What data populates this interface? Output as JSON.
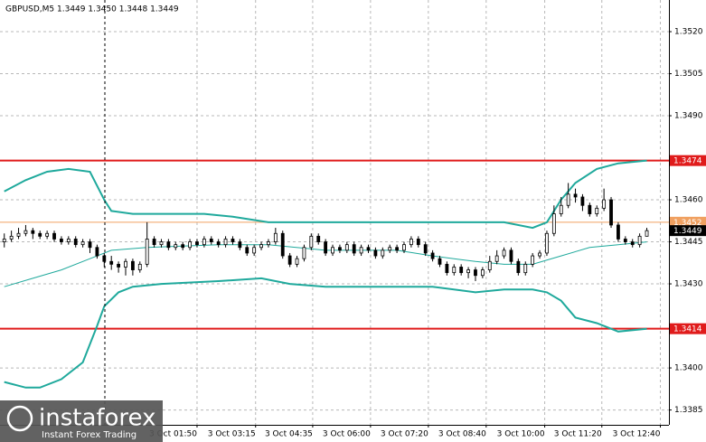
{
  "chart_data": {
    "type": "candlestick",
    "title": "GBPUSD,M5  1.3449 1.3450 1.3448 1.3449",
    "open": [
      1.3445,
      1.3446,
      1.3447,
      1.3448,
      1.3449,
      1.3448,
      1.3447,
      1.3448,
      1.3446,
      1.3445,
      1.3446,
      1.3444,
      1.3445,
      1.3443,
      1.344,
      1.3438,
      1.3437,
      1.3436,
      1.3438,
      1.3435,
      1.3437,
      1.3446,
      1.3444,
      1.3445,
      1.3443,
      1.3444,
      1.3443,
      1.3445,
      1.3444,
      1.3446,
      1.3445,
      1.3444,
      1.3446,
      1.3445,
      1.3443,
      1.3441,
      1.3443,
      1.3444,
      1.3445,
      1.3448,
      1.344,
      1.3437,
      1.3439,
      1.3443,
      1.3447,
      1.3445,
      1.3441,
      1.3443,
      1.3442,
      1.3444,
      1.3441,
      1.3443,
      1.3442,
      1.344,
      1.3442,
      1.3443,
      1.3442,
      1.3444,
      1.3446,
      1.3444,
      1.3441,
      1.3439,
      1.3437,
      1.3434,
      1.3436,
      1.3434,
      1.3435,
      1.3433,
      1.3435,
      1.3438,
      1.344,
      1.3442,
      1.3438,
      1.3434,
      1.3437,
      1.344,
      1.3441,
      1.3448,
      1.3455,
      1.3458,
      1.3462,
      1.3461,
      1.3458,
      1.3455,
      1.3457,
      1.346,
      1.3451,
      1.3446,
      1.3445,
      1.3444,
      1.3447
    ],
    "high": [
      1.3448,
      1.3449,
      1.345,
      1.3451,
      1.345,
      1.3449,
      1.3449,
      1.3449,
      1.3447,
      1.3447,
      1.3447,
      1.3446,
      1.3446,
      1.3444,
      1.3441,
      1.344,
      1.3438,
      1.3439,
      1.3439,
      1.3438,
      1.3452,
      1.3447,
      1.3446,
      1.3446,
      1.3445,
      1.3445,
      1.3446,
      1.3446,
      1.3447,
      1.3447,
      1.3446,
      1.3447,
      1.3447,
      1.3446,
      1.3444,
      1.3444,
      1.3445,
      1.3446,
      1.345,
      1.3449,
      1.3441,
      1.344,
      1.3444,
      1.3448,
      1.3448,
      1.3446,
      1.3444,
      1.3444,
      1.3445,
      1.3445,
      1.3444,
      1.3444,
      1.3443,
      1.3443,
      1.3444,
      1.3444,
      1.3445,
      1.3447,
      1.3447,
      1.3445,
      1.3442,
      1.344,
      1.3438,
      1.3437,
      1.3437,
      1.3436,
      1.3436,
      1.3436,
      1.344,
      1.3442,
      1.3443,
      1.3443,
      1.3439,
      1.3438,
      1.3441,
      1.3442,
      1.3449,
      1.3458,
      1.3461,
      1.3466,
      1.3464,
      1.3462,
      1.3459,
      1.3458,
      1.3464,
      1.3461,
      1.3452,
      1.3447,
      1.3446,
      1.3448,
      1.345
    ],
    "low": [
      1.3443,
      1.3445,
      1.3446,
      1.3447,
      1.3446,
      1.3446,
      1.3446,
      1.3445,
      1.3444,
      1.3444,
      1.3443,
      1.3443,
      1.3441,
      1.3439,
      1.3436,
      1.3435,
      1.3434,
      1.3433,
      1.3433,
      1.3434,
      1.3436,
      1.3443,
      1.3443,
      1.3442,
      1.3442,
      1.3442,
      1.3442,
      1.3443,
      1.3443,
      1.3444,
      1.3443,
      1.3443,
      1.3444,
      1.3442,
      1.344,
      1.344,
      1.3442,
      1.3443,
      1.3444,
      1.3439,
      1.3436,
      1.3436,
      1.3438,
      1.3442,
      1.3444,
      1.344,
      1.344,
      1.3441,
      1.3441,
      1.344,
      1.344,
      1.3441,
      1.3439,
      1.3439,
      1.3441,
      1.3441,
      1.3441,
      1.3443,
      1.3443,
      1.344,
      1.3438,
      1.3436,
      1.3433,
      1.3433,
      1.3433,
      1.3432,
      1.3431,
      1.3432,
      1.3434,
      1.3437,
      1.3439,
      1.3437,
      1.3433,
      1.3433,
      1.3436,
      1.3439,
      1.344,
      1.3447,
      1.3454,
      1.3457,
      1.3459,
      1.3456,
      1.3454,
      1.3454,
      1.3456,
      1.345,
      1.3445,
      1.3444,
      1.3443,
      1.3443,
      1.3447
    ],
    "close": [
      1.3446,
      1.3447,
      1.3448,
      1.3449,
      1.3448,
      1.3447,
      1.3448,
      1.3446,
      1.3445,
      1.3446,
      1.3444,
      1.3445,
      1.3443,
      1.344,
      1.3438,
      1.3437,
      1.3436,
      1.3438,
      1.3435,
      1.3437,
      1.3446,
      1.3444,
      1.3445,
      1.3443,
      1.3444,
      1.3443,
      1.3445,
      1.3444,
      1.3446,
      1.3445,
      1.3444,
      1.3446,
      1.3445,
      1.3443,
      1.3441,
      1.3443,
      1.3444,
      1.3445,
      1.3448,
      1.344,
      1.3437,
      1.3439,
      1.3443,
      1.3447,
      1.3445,
      1.3441,
      1.3443,
      1.3442,
      1.3444,
      1.3441,
      1.3443,
      1.3442,
      1.344,
      1.3442,
      1.3443,
      1.3442,
      1.3444,
      1.3446,
      1.3444,
      1.3441,
      1.3439,
      1.3437,
      1.3434,
      1.3436,
      1.3434,
      1.3435,
      1.3433,
      1.3435,
      1.3438,
      1.344,
      1.3442,
      1.3438,
      1.3434,
      1.3437,
      1.344,
      1.3441,
      1.3448,
      1.3455,
      1.3458,
      1.3462,
      1.3461,
      1.3458,
      1.3455,
      1.3457,
      1.346,
      1.3451,
      1.3446,
      1.3445,
      1.3444,
      1.3447,
      1.3449
    ],
    "bands": [
      {
        "color": "#1fa99c",
        "width": 2,
        "x": [
          0,
          3,
          6,
          9,
          12,
          14,
          15,
          18,
          22,
          28,
          32,
          37,
          45,
          55,
          65,
          70,
          74,
          76,
          78,
          80,
          83,
          86,
          90
        ],
        "values": [
          1.3463,
          1.3467,
          1.347,
          1.3471,
          1.347,
          1.346,
          1.3456,
          1.3455,
          1.3455,
          1.3455,
          1.3454,
          1.3452,
          1.3452,
          1.3452,
          1.3452,
          1.3452,
          1.345,
          1.3452,
          1.346,
          1.3466,
          1.3471,
          1.3473,
          1.3474
        ]
      },
      {
        "color": "#1fa99c",
        "width": 1,
        "x": [
          0,
          4,
          8,
          12,
          15,
          20,
          30,
          37,
          45,
          55,
          60,
          66,
          70,
          74,
          78,
          82,
          86,
          90
        ],
        "values": [
          1.3429,
          1.3432,
          1.3435,
          1.3439,
          1.3442,
          1.3443,
          1.3444,
          1.3444,
          1.3442,
          1.3442,
          1.344,
          1.3438,
          1.3437,
          1.3437,
          1.344,
          1.3443,
          1.3444,
          1.3445
        ]
      },
      {
        "color": "#1fa99c",
        "width": 2,
        "x": [
          0,
          3,
          5,
          8,
          11,
          13,
          14,
          16,
          18,
          22,
          30,
          36,
          40,
          45,
          55,
          60,
          66,
          70,
          74,
          76,
          78,
          80,
          83,
          86,
          90
        ],
        "values": [
          1.3395,
          1.3393,
          1.3393,
          1.3396,
          1.3402,
          1.3415,
          1.3422,
          1.3427,
          1.3429,
          1.343,
          1.3431,
          1.3432,
          1.343,
          1.3429,
          1.3429,
          1.3429,
          1.3427,
          1.3428,
          1.3428,
          1.3427,
          1.3424,
          1.3418,
          1.3416,
          1.3413,
          1.3414
        ]
      }
    ],
    "levels": [
      {
        "value": 1.3474,
        "color": "#e01b1b"
      },
      {
        "value": 1.3452,
        "color": "#f0a060"
      },
      {
        "value": 1.3414,
        "color": "#e01b1b"
      }
    ],
    "last": 1.3449,
    "ylim": [
      1.33797,
      1.35313
    ],
    "yticks": [
      {
        "value": 1.352,
        "label": "1.3520"
      },
      1.3505,
      {
        "value": 1.349,
        "label": "1.3490"
      },
      {
        "value": 1.346,
        "label": "1.3460"
      },
      1.3445,
      {
        "value": 1.343,
        "label": "1.3430"
      },
      {
        "value": 1.34,
        "label": "1.3400"
      },
      1.3385
    ],
    "xlim": [
      -0.6,
      93.1
    ],
    "xticks": [
      {
        "value": 27,
        "label": "3 Oct 01:50"
      },
      {
        "value": 35.2,
        "label": "3 Oct 03:15"
      },
      {
        "value": 43.2,
        "label": "3 Oct 04:35"
      },
      {
        "value": 51.3,
        "label": "3 Oct 06:00"
      },
      {
        "value": 59.4,
        "label": "3 Oct 07:20"
      },
      {
        "value": 67.5,
        "label": "3 Oct 08:40"
      },
      {
        "value": 75.7,
        "label": "3 Oct 10:00"
      },
      {
        "value": 83.7,
        "label": "3 Oct 11:20"
      },
      {
        "value": 91.9,
        "label": "3 Oct 12:40"
      }
    ],
    "grid": true
  },
  "logo": {
    "name": "instaforex",
    "tagline": "Instant Forex Trading"
  }
}
